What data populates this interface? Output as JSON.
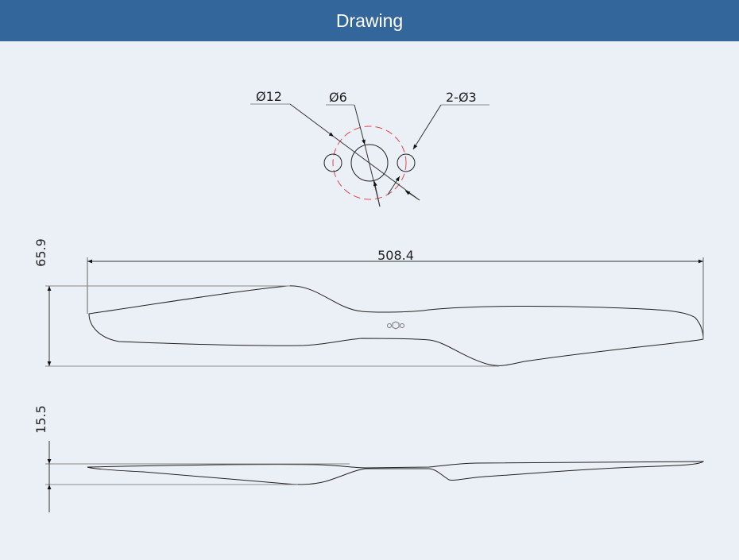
{
  "header": {
    "title": "Drawing"
  },
  "hub_view": {
    "labels": {
      "outer_diameter": "Ø12",
      "center_hole": "Ø6",
      "mount_holes": "2-Ø3"
    },
    "pitch_circle_color": "#e0454f"
  },
  "top_view": {
    "length_label": "508.4",
    "width_label": "65.9"
  },
  "side_view": {
    "thickness_label": "15.5"
  },
  "colors": {
    "header_bg": "#33669b",
    "page_bg": "#ebf0f7",
    "line": "#222222"
  }
}
